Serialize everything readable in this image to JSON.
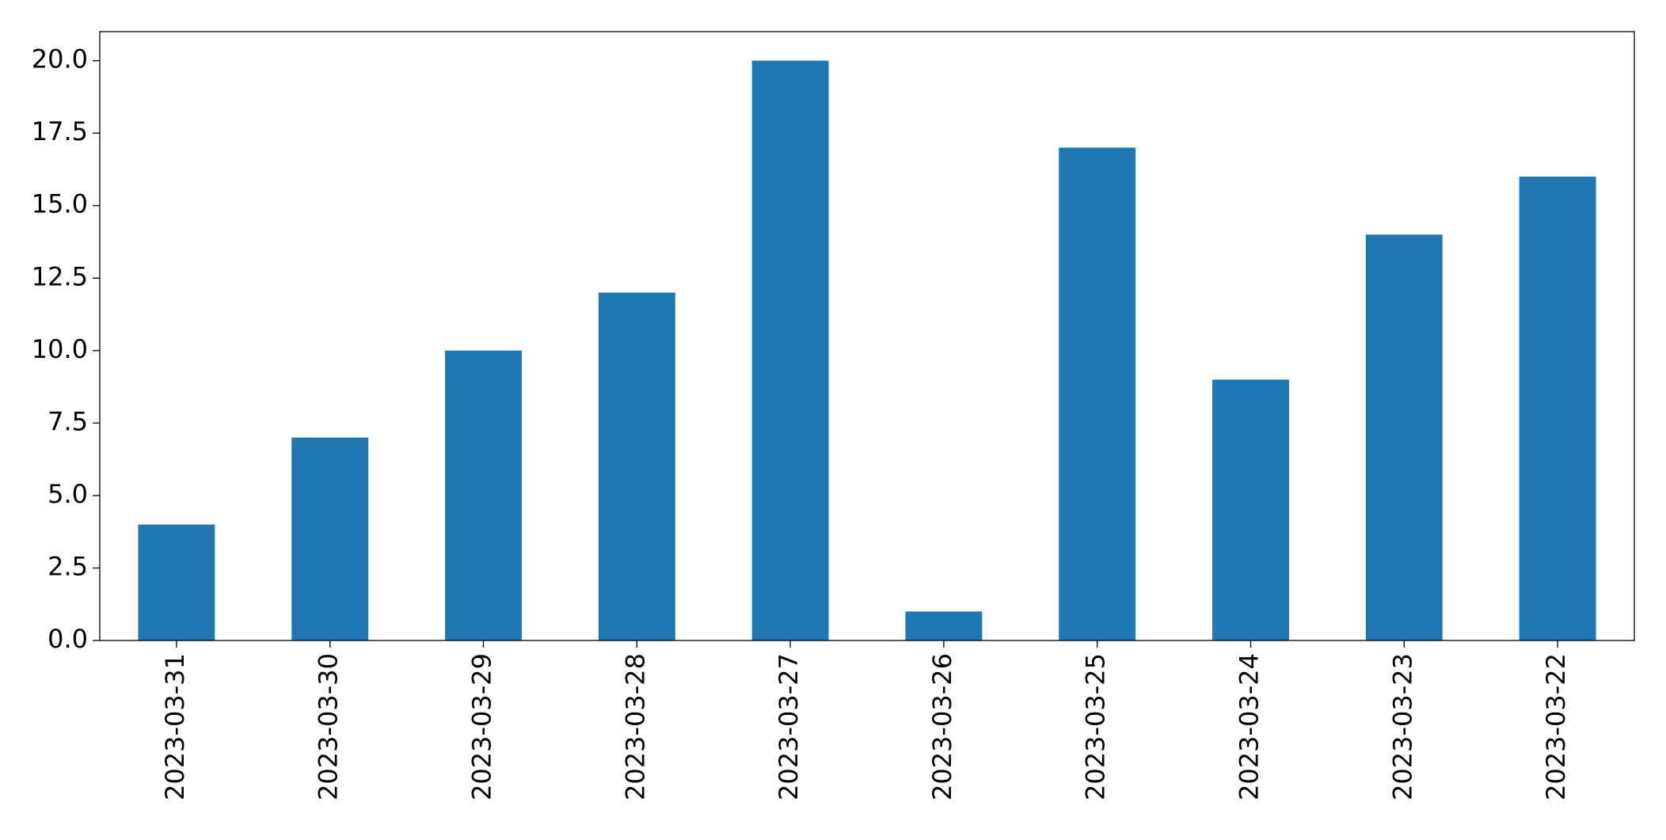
{
  "chart_data": {
    "type": "bar",
    "categories": [
      "2023-03-31",
      "2023-03-30",
      "2023-03-29",
      "2023-03-28",
      "2023-03-27",
      "2023-03-26",
      "2023-03-25",
      "2023-03-24",
      "2023-03-23",
      "2023-03-22"
    ],
    "values": [
      4,
      7,
      10,
      12,
      20,
      1,
      17,
      9,
      14,
      16
    ],
    "color": "#1f77b4",
    "ylim": [
      0,
      21
    ],
    "yticks": [
      {
        "value": 0,
        "label": "0.0"
      },
      {
        "value": 2.5,
        "label": "2.5"
      },
      {
        "value": 5,
        "label": "5.0"
      },
      {
        "value": 7.5,
        "label": "7.5"
      },
      {
        "value": 10,
        "label": "10.0"
      },
      {
        "value": 12.5,
        "label": "12.5"
      },
      {
        "value": 15,
        "label": "15.0"
      },
      {
        "value": 17.5,
        "label": "17.5"
      },
      {
        "value": 20,
        "label": "20.0"
      }
    ],
    "grid": false
  }
}
